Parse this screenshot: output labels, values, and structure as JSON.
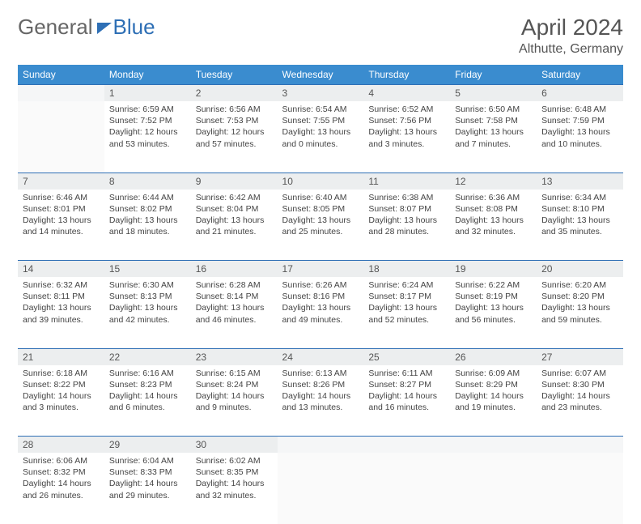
{
  "logo": {
    "text1": "General",
    "text2": "Blue"
  },
  "title": "April 2024",
  "location": "Althutte, Germany",
  "colors": {
    "header_bg": "#3a8ccf",
    "accent": "#2e6fb5",
    "daynum_bg": "#eceeef"
  },
  "weekdays": [
    "Sunday",
    "Monday",
    "Tuesday",
    "Wednesday",
    "Thursday",
    "Friday",
    "Saturday"
  ],
  "weeks": [
    {
      "nums": [
        "",
        "1",
        "2",
        "3",
        "4",
        "5",
        "6"
      ],
      "cells": [
        "",
        "Sunrise: 6:59 AM\nSunset: 7:52 PM\nDaylight: 12 hours and 53 minutes.",
        "Sunrise: 6:56 AM\nSunset: 7:53 PM\nDaylight: 12 hours and 57 minutes.",
        "Sunrise: 6:54 AM\nSunset: 7:55 PM\nDaylight: 13 hours and 0 minutes.",
        "Sunrise: 6:52 AM\nSunset: 7:56 PM\nDaylight: 13 hours and 3 minutes.",
        "Sunrise: 6:50 AM\nSunset: 7:58 PM\nDaylight: 13 hours and 7 minutes.",
        "Sunrise: 6:48 AM\nSunset: 7:59 PM\nDaylight: 13 hours and 10 minutes."
      ]
    },
    {
      "nums": [
        "7",
        "8",
        "9",
        "10",
        "11",
        "12",
        "13"
      ],
      "cells": [
        "Sunrise: 6:46 AM\nSunset: 8:01 PM\nDaylight: 13 hours and 14 minutes.",
        "Sunrise: 6:44 AM\nSunset: 8:02 PM\nDaylight: 13 hours and 18 minutes.",
        "Sunrise: 6:42 AM\nSunset: 8:04 PM\nDaylight: 13 hours and 21 minutes.",
        "Sunrise: 6:40 AM\nSunset: 8:05 PM\nDaylight: 13 hours and 25 minutes.",
        "Sunrise: 6:38 AM\nSunset: 8:07 PM\nDaylight: 13 hours and 28 minutes.",
        "Sunrise: 6:36 AM\nSunset: 8:08 PM\nDaylight: 13 hours and 32 minutes.",
        "Sunrise: 6:34 AM\nSunset: 8:10 PM\nDaylight: 13 hours and 35 minutes."
      ]
    },
    {
      "nums": [
        "14",
        "15",
        "16",
        "17",
        "18",
        "19",
        "20"
      ],
      "cells": [
        "Sunrise: 6:32 AM\nSunset: 8:11 PM\nDaylight: 13 hours and 39 minutes.",
        "Sunrise: 6:30 AM\nSunset: 8:13 PM\nDaylight: 13 hours and 42 minutes.",
        "Sunrise: 6:28 AM\nSunset: 8:14 PM\nDaylight: 13 hours and 46 minutes.",
        "Sunrise: 6:26 AM\nSunset: 8:16 PM\nDaylight: 13 hours and 49 minutes.",
        "Sunrise: 6:24 AM\nSunset: 8:17 PM\nDaylight: 13 hours and 52 minutes.",
        "Sunrise: 6:22 AM\nSunset: 8:19 PM\nDaylight: 13 hours and 56 minutes.",
        "Sunrise: 6:20 AM\nSunset: 8:20 PM\nDaylight: 13 hours and 59 minutes."
      ]
    },
    {
      "nums": [
        "21",
        "22",
        "23",
        "24",
        "25",
        "26",
        "27"
      ],
      "cells": [
        "Sunrise: 6:18 AM\nSunset: 8:22 PM\nDaylight: 14 hours and 3 minutes.",
        "Sunrise: 6:16 AM\nSunset: 8:23 PM\nDaylight: 14 hours and 6 minutes.",
        "Sunrise: 6:15 AM\nSunset: 8:24 PM\nDaylight: 14 hours and 9 minutes.",
        "Sunrise: 6:13 AM\nSunset: 8:26 PM\nDaylight: 14 hours and 13 minutes.",
        "Sunrise: 6:11 AM\nSunset: 8:27 PM\nDaylight: 14 hours and 16 minutes.",
        "Sunrise: 6:09 AM\nSunset: 8:29 PM\nDaylight: 14 hours and 19 minutes.",
        "Sunrise: 6:07 AM\nSunset: 8:30 PM\nDaylight: 14 hours and 23 minutes."
      ]
    },
    {
      "nums": [
        "28",
        "29",
        "30",
        "",
        "",
        "",
        ""
      ],
      "cells": [
        "Sunrise: 6:06 AM\nSunset: 8:32 PM\nDaylight: 14 hours and 26 minutes.",
        "Sunrise: 6:04 AM\nSunset: 8:33 PM\nDaylight: 14 hours and 29 minutes.",
        "Sunrise: 6:02 AM\nSunset: 8:35 PM\nDaylight: 14 hours and 32 minutes.",
        "",
        "",
        "",
        ""
      ]
    }
  ]
}
